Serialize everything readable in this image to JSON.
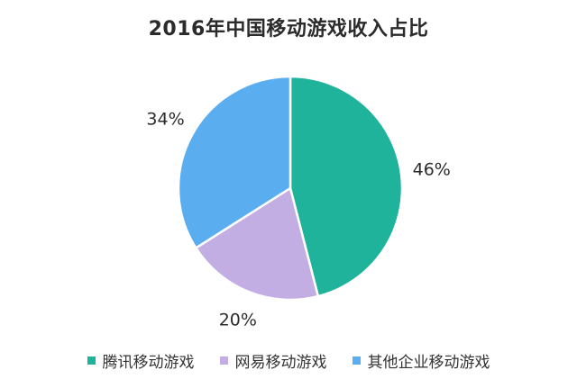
{
  "chart_data": {
    "type": "pie",
    "title": "2016年中国移动游戏收入占比",
    "categories": [
      "腾讯移动游戏",
      "网易移动游戏",
      "其他企业移动游戏"
    ],
    "values": [
      46,
      20,
      34
    ],
    "labels": [
      "46%",
      "20%",
      "34%"
    ],
    "colors": [
      "#20B39C",
      "#C3AEE4",
      "#5AAEEF"
    ],
    "start_angle": "12 o'clock",
    "direction": "clockwise",
    "legend_position": "bottom"
  }
}
